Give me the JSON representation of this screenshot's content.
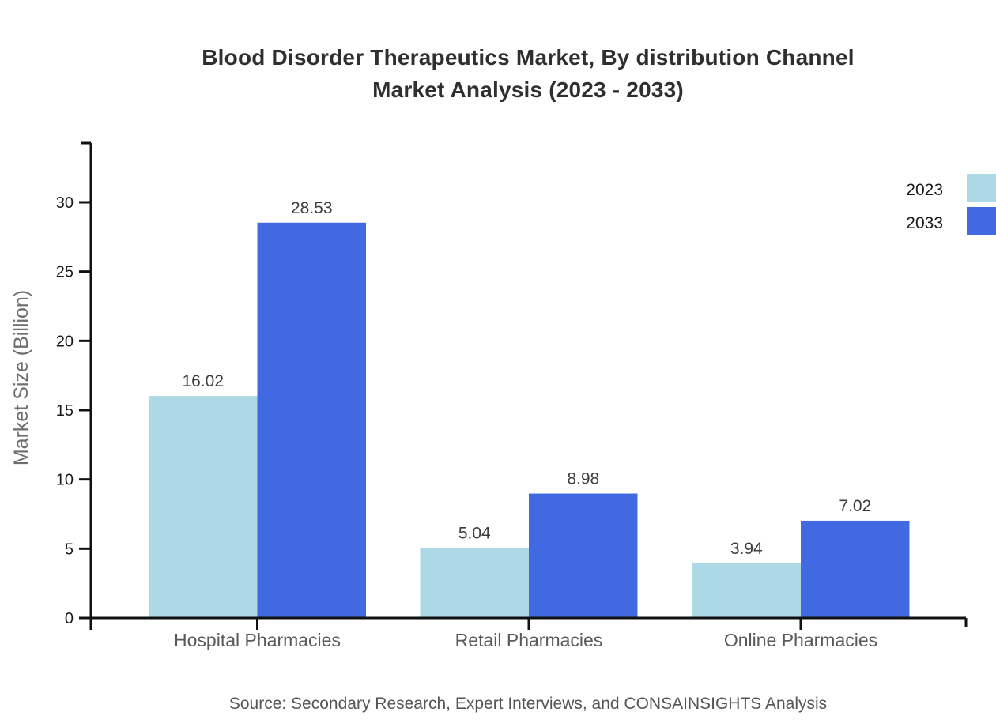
{
  "title": {
    "line1": "Blood Disorder Therapeutics Market, By distribution Channel",
    "line2": "Market Analysis (2023 - 2033)"
  },
  "source_note": "Source: Secondary Research, Expert Interviews, and CONSAINSIGHTS Analysis",
  "chart_data": {
    "type": "bar",
    "title": "Blood Disorder Therapeutics Market, By distribution Channel Market Analysis (2023 - 2033)",
    "categories": [
      "Hospital Pharmacies",
      "Retail Pharmacies",
      "Online Pharmacies"
    ],
    "series": [
      {
        "name": "2023",
        "values": [
          16.02,
          5.04,
          3.94
        ],
        "color": "#ADD8E6"
      },
      {
        "name": "2033",
        "values": [
          28.53,
          8.98,
          7.02
        ],
        "color": "#4169E1"
      }
    ],
    "value_labels": {
      "Hospital Pharmacies": {
        "2023": "16.02",
        "2033": "28.53"
      },
      "Retail Pharmacies": {
        "2023": "5.04",
        "2033": "8.98"
      },
      "Online Pharmacies": {
        "2023": "3.94",
        "2033": "7.02"
      }
    },
    "xlabel": "",
    "ylabel": "Market Size (Billion)",
    "yticks": [
      0,
      5,
      10,
      15,
      20,
      25,
      30
    ],
    "ylim": [
      0,
      34.3
    ],
    "grid": false,
    "legend": {
      "position": "top-right",
      "entries": [
        "2023",
        "2033"
      ]
    }
  },
  "colors": {
    "series_2023": "#ADD8E6",
    "series_2033": "#4169E1",
    "axis": "#111111",
    "title_text": "#2f2f2f",
    "tick_label": "#1a1a1a",
    "category_label": "#595959",
    "value_label": "#3d3d3d",
    "y_axis_title": "#6e6e6e",
    "source_text": "#555555",
    "background": "#ffffff"
  }
}
